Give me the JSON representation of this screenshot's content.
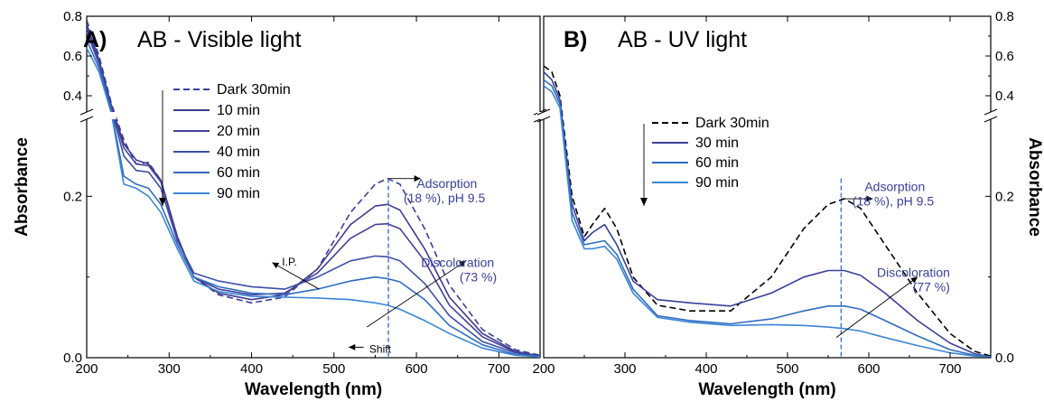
{
  "chart_data": [
    {
      "type": "line",
      "panel_label": "A)",
      "title": "AB - Visible light",
      "xlabel": "Wavelength (nm)",
      "ylabel": "Absorbance",
      "ylabel_side": "left",
      "xlim": [
        200,
        750
      ],
      "x_ticks": [
        200,
        300,
        400,
        500,
        600,
        700
      ],
      "y_upper_range": [
        0.3,
        0.8
      ],
      "y_upper_ticks": [
        0.4,
        0.6,
        0.8
      ],
      "y_lower_range": [
        0.0,
        0.3
      ],
      "y_lower_ticks": [
        0.0,
        0.2
      ],
      "axis_break": true,
      "legend_arrow": "down",
      "series": [
        {
          "name": "Dark 30min",
          "dash": true,
          "color": "#3a3f9a",
          "x": [
            200,
            215,
            230,
            245,
            260,
            275,
            290,
            310,
            330,
            360,
            400,
            440,
            480,
            520,
            550,
            565,
            580,
            610,
            640,
            680,
            720,
            750
          ],
          "y": [
            0.78,
            0.6,
            0.36,
            0.27,
            0.24,
            0.242,
            0.22,
            0.15,
            0.1,
            0.078,
            0.068,
            0.075,
            0.11,
            0.18,
            0.215,
            0.222,
            0.215,
            0.16,
            0.09,
            0.035,
            0.01,
            0.003
          ]
        },
        {
          "name": "10 min",
          "dash": false,
          "color": "#3f3a8f",
          "x": [
            200,
            215,
            230,
            245,
            260,
            275,
            290,
            310,
            330,
            360,
            400,
            440,
            480,
            520,
            550,
            565,
            580,
            610,
            640,
            680,
            720,
            750
          ],
          "y": [
            0.76,
            0.58,
            0.35,
            0.265,
            0.245,
            0.24,
            0.22,
            0.15,
            0.1,
            0.08,
            0.072,
            0.078,
            0.11,
            0.165,
            0.188,
            0.19,
            0.183,
            0.135,
            0.075,
            0.03,
            0.008,
            0.002
          ]
        },
        {
          "name": "20 min",
          "dash": false,
          "color": "#444099",
          "x": [
            200,
            215,
            230,
            245,
            260,
            275,
            290,
            310,
            330,
            360,
            400,
            440,
            480,
            520,
            550,
            565,
            580,
            610,
            640,
            680,
            720,
            750
          ],
          "y": [
            0.74,
            0.57,
            0.34,
            0.26,
            0.24,
            0.238,
            0.218,
            0.148,
            0.1,
            0.085,
            0.078,
            0.08,
            0.105,
            0.148,
            0.165,
            0.166,
            0.16,
            0.12,
            0.065,
            0.026,
            0.007,
            0.002
          ]
        },
        {
          "name": "40 min",
          "dash": false,
          "color": "#3d4ea6",
          "x": [
            200,
            215,
            230,
            245,
            260,
            275,
            290,
            310,
            330,
            360,
            400,
            440,
            480,
            520,
            550,
            565,
            580,
            610,
            640,
            680,
            720,
            750
          ],
          "y": [
            0.72,
            0.56,
            0.33,
            0.25,
            0.232,
            0.23,
            0.21,
            0.145,
            0.105,
            0.095,
            0.088,
            0.085,
            0.1,
            0.12,
            0.126,
            0.125,
            0.12,
            0.092,
            0.052,
            0.02,
            0.006,
            0.001
          ]
        },
        {
          "name": "60 min",
          "dash": false,
          "color": "#2f6cc0",
          "x": [
            200,
            215,
            230,
            245,
            260,
            275,
            290,
            310,
            330,
            360,
            400,
            440,
            480,
            520,
            550,
            565,
            580,
            610,
            640,
            680,
            720,
            750
          ],
          "y": [
            0.68,
            0.54,
            0.32,
            0.225,
            0.215,
            0.21,
            0.19,
            0.14,
            0.1,
            0.088,
            0.08,
            0.078,
            0.085,
            0.095,
            0.1,
            0.098,
            0.094,
            0.072,
            0.04,
            0.016,
            0.004,
            0.001
          ]
        },
        {
          "name": "90 min",
          "dash": false,
          "color": "#3a86d6",
          "x": [
            200,
            215,
            230,
            245,
            260,
            275,
            290,
            310,
            330,
            360,
            400,
            440,
            480,
            520,
            550,
            565,
            580,
            610,
            640,
            680,
            720,
            750
          ],
          "y": [
            0.64,
            0.52,
            0.31,
            0.215,
            0.21,
            0.2,
            0.18,
            0.135,
            0.095,
            0.082,
            0.076,
            0.075,
            0.074,
            0.072,
            0.068,
            0.065,
            0.06,
            0.046,
            0.03,
            0.012,
            0.003,
            0.001
          ]
        }
      ],
      "vline_x": 566,
      "annotations": [
        {
          "text": "Adsorption",
          "x": 637,
          "y": 0.216
        },
        {
          "text": "(18 %), pH 9.5",
          "x": 634,
          "y": 0.198
        },
        {
          "text": "Discoloration",
          "x": 650,
          "y": 0.118
        },
        {
          "text": "(73 %)",
          "x": 675,
          "y": 0.1
        },
        {
          "text": "I.P.",
          "x": 446,
          "y": 0.12
        },
        {
          "text": "Shift",
          "x": 556,
          "y": 0.012
        }
      ],
      "arrows": [
        {
          "from": [
            566,
            0.222
          ],
          "to": [
            605,
            0.222
          ]
        },
        {
          "from": [
            540,
            0.038
          ],
          "to": [
            660,
            0.12
          ]
        },
        {
          "from": [
            482,
            0.085
          ],
          "to": [
            425,
            0.118
          ]
        },
        {
          "from": [
            536,
            0.013
          ],
          "to": [
            518,
            0.013
          ]
        }
      ]
    },
    {
      "type": "line",
      "panel_label": "B)",
      "title": "AB - UV light",
      "xlabel": "Wavelength (nm)",
      "ylabel": "Absorbance",
      "ylabel_side": "right",
      "xlim": [
        200,
        750
      ],
      "x_ticks": [
        200,
        300,
        400,
        500,
        600,
        700
      ],
      "y_upper_range": [
        0.3,
        0.8
      ],
      "y_upper_ticks": [
        0.4,
        0.6,
        0.8
      ],
      "y_lower_range": [
        0.0,
        0.3
      ],
      "y_lower_ticks": [
        0.0,
        0.2
      ],
      "axis_break": true,
      "legend_arrow": "down",
      "series": [
        {
          "name": "Dark 30min",
          "dash": true,
          "color": "#000000",
          "x": [
            200,
            210,
            220,
            235,
            250,
            260,
            275,
            290,
            310,
            340,
            380,
            430,
            480,
            520,
            550,
            570,
            590,
            620,
            660,
            700,
            730,
            750
          ],
          "y": [
            0.55,
            0.52,
            0.4,
            0.2,
            0.15,
            0.165,
            0.185,
            0.16,
            0.1,
            0.065,
            0.058,
            0.058,
            0.1,
            0.16,
            0.19,
            0.197,
            0.185,
            0.14,
            0.08,
            0.03,
            0.008,
            0.002
          ]
        },
        {
          "name": "30 min",
          "dash": false,
          "color": "#3a3f9a",
          "x": [
            200,
            210,
            220,
            235,
            250,
            260,
            275,
            290,
            310,
            340,
            380,
            430,
            480,
            520,
            550,
            570,
            590,
            620,
            660,
            700,
            730,
            750
          ],
          "y": [
            0.52,
            0.48,
            0.38,
            0.19,
            0.145,
            0.155,
            0.165,
            0.14,
            0.095,
            0.072,
            0.068,
            0.064,
            0.08,
            0.1,
            0.108,
            0.108,
            0.102,
            0.08,
            0.046,
            0.018,
            0.005,
            0.001
          ]
        },
        {
          "name": "60 min",
          "dash": false,
          "color": "#2f6cc0",
          "x": [
            200,
            210,
            220,
            235,
            250,
            260,
            275,
            290,
            310,
            340,
            380,
            430,
            480,
            520,
            550,
            570,
            590,
            620,
            660,
            700,
            730,
            750
          ],
          "y": [
            0.48,
            0.45,
            0.36,
            0.18,
            0.14,
            0.142,
            0.145,
            0.128,
            0.085,
            0.052,
            0.046,
            0.042,
            0.048,
            0.058,
            0.064,
            0.064,
            0.06,
            0.046,
            0.027,
            0.01,
            0.003,
            0.001
          ]
        },
        {
          "name": "90 min",
          "dash": false,
          "color": "#3a86d6",
          "x": [
            200,
            210,
            220,
            235,
            250,
            260,
            275,
            290,
            310,
            340,
            380,
            430,
            480,
            520,
            550,
            570,
            590,
            620,
            660,
            700,
            730,
            750
          ],
          "y": [
            0.45,
            0.42,
            0.34,
            0.17,
            0.135,
            0.135,
            0.138,
            0.122,
            0.08,
            0.05,
            0.044,
            0.04,
            0.041,
            0.04,
            0.038,
            0.036,
            0.033,
            0.025,
            0.015,
            0.006,
            0.002,
            0.001
          ]
        }
      ],
      "vline_x": 566,
      "annotations": [
        {
          "text": "Adsorption",
          "x": 632,
          "y": 0.212
        },
        {
          "text": "(18 %), pH 9.5",
          "x": 630,
          "y": 0.194
        },
        {
          "text": "Discoloration",
          "x": 655,
          "y": 0.106
        },
        {
          "text": "(77 %)",
          "x": 677,
          "y": 0.088
        }
      ],
      "arrows": [
        {
          "from": [
            566,
            0.197
          ],
          "to": [
            605,
            0.197
          ]
        },
        {
          "from": [
            560,
            0.025
          ],
          "to": [
            660,
            0.1
          ]
        }
      ]
    }
  ]
}
